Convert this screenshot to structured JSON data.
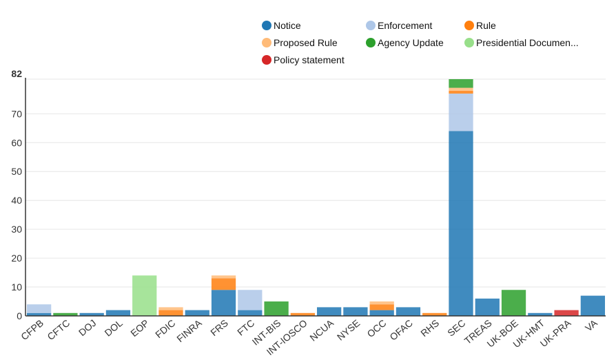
{
  "chart_data": {
    "type": "bar",
    "stacked": true,
    "categories": [
      "CFPB",
      "CFTC",
      "DOJ",
      "DOL",
      "EOP",
      "FDIC",
      "FINRA",
      "FRS",
      "FTC",
      "INT-BIS",
      "INT-IOSCO",
      "NCUA",
      "NYSE",
      "OCC",
      "OFAC",
      "RHS",
      "SEC",
      "TREAS",
      "UK-BOE",
      "UK-HMT",
      "UK-PRA",
      "VA"
    ],
    "ylim": [
      0,
      82
    ],
    "yticks": [
      0,
      10,
      20,
      30,
      40,
      50,
      60,
      70
    ],
    "ymax_label": "82",
    "grid": true,
    "legend_position": "top-right",
    "series": [
      {
        "name": "Notice",
        "color": "#1f77b4",
        "values": [
          1,
          0,
          1,
          2,
          0,
          0,
          2,
          9,
          2,
          0,
          0,
          3,
          3,
          2,
          3,
          0,
          64,
          6,
          0,
          1,
          0,
          7
        ]
      },
      {
        "name": "Enforcement",
        "color": "#aec7e8",
        "values": [
          3,
          0,
          0,
          0,
          0,
          0,
          0,
          0,
          7,
          0,
          0,
          0,
          0,
          0,
          0,
          0,
          13,
          0,
          0,
          0,
          0,
          0
        ]
      },
      {
        "name": "Rule",
        "color": "#ff7f0e",
        "values": [
          0,
          0,
          0,
          0,
          0,
          2,
          0,
          4,
          0,
          0,
          1,
          0,
          0,
          2,
          0,
          1,
          1,
          0,
          0,
          0,
          0,
          0
        ]
      },
      {
        "name": "Proposed Rule",
        "color": "#ffbb78",
        "values": [
          0,
          0,
          0,
          0,
          0,
          1,
          0,
          1,
          0,
          0,
          0,
          0,
          0,
          1,
          0,
          0,
          1,
          0,
          0,
          0,
          0,
          0
        ]
      },
      {
        "name": "Agency Update",
        "color": "#2ca02c",
        "values": [
          0,
          1,
          0,
          0,
          0,
          0,
          0,
          0,
          0,
          5,
          0,
          0,
          0,
          0,
          0,
          0,
          3,
          0,
          9,
          0,
          0,
          0
        ]
      },
      {
        "name": "Presidential Documen...",
        "color": "#98df8a",
        "values": [
          0,
          0,
          0,
          0,
          14,
          0,
          0,
          0,
          0,
          0,
          0,
          0,
          0,
          0,
          0,
          0,
          0,
          0,
          0,
          0,
          0,
          0
        ]
      },
      {
        "name": "Policy statement",
        "color": "#d62728",
        "values": [
          0,
          0,
          0,
          0,
          0,
          0,
          0,
          0,
          0,
          0,
          0,
          0,
          0,
          0,
          0,
          0,
          0,
          0,
          0,
          0,
          2,
          0
        ]
      }
    ]
  }
}
